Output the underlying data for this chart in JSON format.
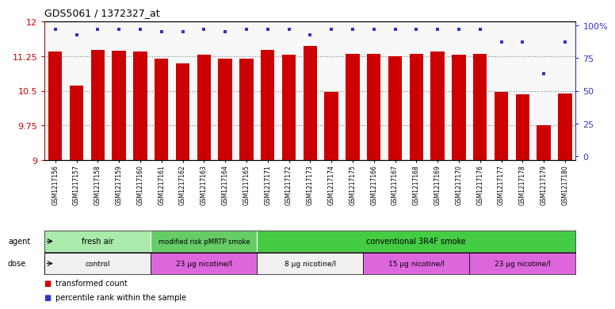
{
  "title": "GDS5061 / 1372327_at",
  "samples": [
    "GSM1217156",
    "GSM1217157",
    "GSM1217158",
    "GSM1217159",
    "GSM1217160",
    "GSM1217161",
    "GSM1217162",
    "GSM1217163",
    "GSM1217164",
    "GSM1217165",
    "GSM1217171",
    "GSM1217172",
    "GSM1217173",
    "GSM1217174",
    "GSM1217175",
    "GSM1217166",
    "GSM1217167",
    "GSM1217168",
    "GSM1217169",
    "GSM1217170",
    "GSM1217176",
    "GSM1217177",
    "GSM1217178",
    "GSM1217179",
    "GSM1217180"
  ],
  "bar_values": [
    11.35,
    10.62,
    11.38,
    11.37,
    11.35,
    11.19,
    11.1,
    11.28,
    11.19,
    11.2,
    11.38,
    11.28,
    11.47,
    10.48,
    11.3,
    11.3,
    11.25,
    11.3,
    11.35,
    11.28,
    11.3,
    10.48,
    10.43,
    9.75,
    10.44
  ],
  "percentile_values": [
    97,
    93,
    97,
    97,
    97,
    95,
    95,
    97,
    95,
    97,
    97,
    97,
    93,
    97,
    97,
    97,
    97,
    97,
    97,
    97,
    97,
    87,
    87,
    63,
    87
  ],
  "bar_color": "#cc0000",
  "percentile_color": "#3333cc",
  "ylim": [
    9,
    12
  ],
  "yticks": [
    9,
    9.75,
    10.5,
    11.25,
    12
  ],
  "ytick_labels": [
    "9",
    "9.75",
    "10.5",
    "11.25",
    "12"
  ],
  "y2ticks": [
    0,
    25,
    50,
    75,
    100
  ],
  "y2labels": [
    "0",
    "25",
    "50",
    "75",
    "100%"
  ],
  "gridlines": [
    9.75,
    10.5,
    11.25
  ],
  "agent_groups": [
    {
      "label": "fresh air",
      "start": 0,
      "end": 5,
      "color": "#aaeaaa"
    },
    {
      "label": "modified risk pMRTP smoke",
      "start": 5,
      "end": 10,
      "color": "#66cc66"
    },
    {
      "label": "conventional 3R4F smoke",
      "start": 10,
      "end": 25,
      "color": "#44cc44"
    }
  ],
  "dose_groups": [
    {
      "label": "control",
      "start": 0,
      "end": 5,
      "color": "#f0f0f0"
    },
    {
      "label": "23 μg nicotine/l",
      "start": 5,
      "end": 10,
      "color": "#dd66dd"
    },
    {
      "label": "8 μg nicotine/l",
      "start": 10,
      "end": 15,
      "color": "#f0f0f0"
    },
    {
      "label": "15 μg nicotine/l",
      "start": 15,
      "end": 20,
      "color": "#dd66dd"
    },
    {
      "label": "23 μg nicotine/l",
      "start": 20,
      "end": 25,
      "color": "#dd66dd"
    }
  ],
  "legend": [
    {
      "label": "transformed count",
      "color": "#cc0000"
    },
    {
      "label": "percentile rank within the sample",
      "color": "#3333cc"
    }
  ],
  "bg_color": "#ffffff"
}
